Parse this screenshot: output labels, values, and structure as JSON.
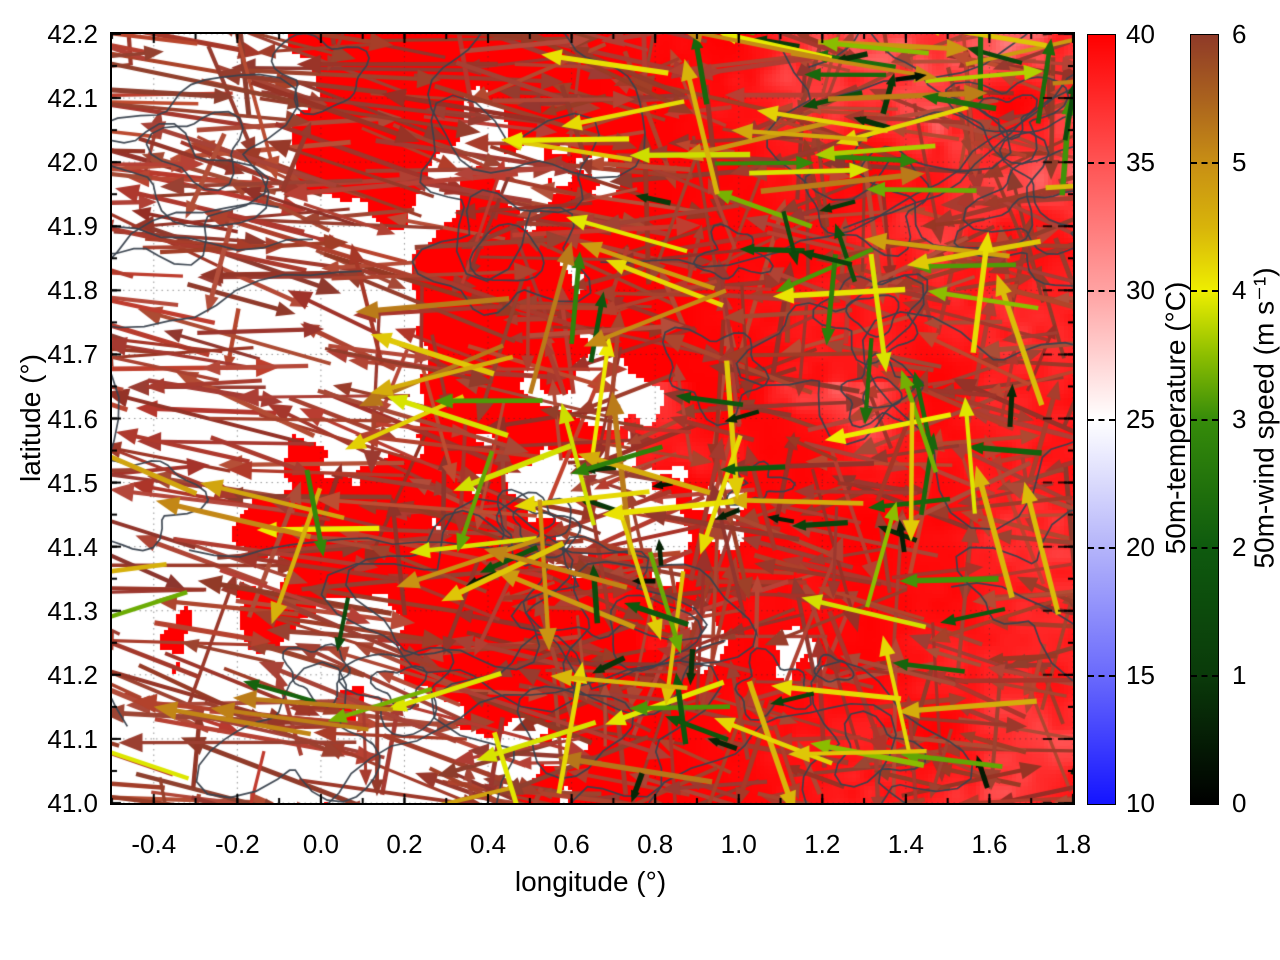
{
  "figure": {
    "background": "#ffffff"
  },
  "chart_data": {
    "type": "heatmap",
    "subtype": "vector-field-map",
    "title": "",
    "xlabel": "longitude (°)",
    "ylabel": "latitude (°)",
    "xlim": [
      -0.5,
      1.8
    ],
    "ylim": [
      41.0,
      42.2
    ],
    "grid": "dotted, at every labelled tick",
    "x_tick_values": [
      -0.4,
      -0.2,
      0.0,
      0.2,
      0.4,
      0.6,
      0.8,
      1.0,
      1.2,
      1.4,
      1.6,
      1.8
    ],
    "x_tick_labels": [
      "-0.4",
      "-0.2",
      "0.0",
      "0.2",
      "0.4",
      "0.6",
      "0.8",
      "1.0",
      "1.2",
      "1.4",
      "1.6",
      "1.8"
    ],
    "y_tick_values": [
      41.0,
      41.1,
      41.2,
      41.3,
      41.4,
      41.5,
      41.6,
      41.7,
      41.8,
      41.9,
      42.0,
      42.1,
      42.2
    ],
    "y_tick_labels": [
      "41.0",
      "41.1",
      "41.2",
      "41.3",
      "41.4",
      "41.5",
      "41.6",
      "41.7",
      "41.8",
      "41.9",
      "42.0",
      "42.1",
      "42.2"
    ],
    "colorbars": [
      {
        "id": "temperature",
        "title": "50m-temperature (°C)",
        "range": [
          10,
          40
        ],
        "tick_values": [
          40,
          35,
          30,
          25,
          20,
          15,
          10
        ],
        "tick_labels": [
          "40",
          "35",
          "30",
          "25",
          "20",
          "15",
          "10"
        ],
        "palette": [
          [
            10,
            "#1414ff"
          ],
          [
            15,
            "#6a6afc"
          ],
          [
            20,
            "#b4b4fa"
          ],
          [
            25,
            "#ffffff"
          ],
          [
            30,
            "#ffa2a2"
          ],
          [
            35,
            "#ff5454"
          ],
          [
            40,
            "#ff0000"
          ]
        ]
      },
      {
        "id": "wind",
        "title": "50m-wind speed (m s⁻¹)",
        "range": [
          0,
          6
        ],
        "tick_values": [
          6,
          5,
          4,
          3,
          2,
          1,
          0
        ],
        "tick_labels": [
          "6",
          "5",
          "4",
          "3",
          "2",
          "1",
          "0"
        ],
        "palette": [
          [
            0,
            "#000000"
          ],
          [
            1,
            "#0a3a0a"
          ],
          [
            2,
            "#0e5a0e"
          ],
          [
            3,
            "#368c0a"
          ],
          [
            3.5,
            "#8cbe00"
          ],
          [
            4,
            "#eeee00"
          ],
          [
            4.5,
            "#d8b40a"
          ],
          [
            5,
            "#c88f14"
          ],
          [
            5.5,
            "#aa621e"
          ],
          [
            6,
            "#8f3a28"
          ]
        ]
      }
    ],
    "field_summary": {
      "description": "50 m temperature shading: saturated red (≥40 °C) over most of the eastern two thirds, white (≈25 °C) patchwork in the west, pale pink mottling (≈30–38 °C) in the north-east corner and along the eastern edge. Overlaid dark contour lines and a very dense field of wind vectors coloured by 50 m wind speed. Vectors are dominated by dark brown-red arrows (≈6 m s⁻¹) blowing towards the west/south-west, criss-crossing in the western half; slower yellow (≈4), orange (≈5), green (≈3) and dark-green (≈1–2 m s⁻¹) arrows concentrate in the eastern half and the north-east corner, many pointing west or north.",
      "contour_color": "#39424e",
      "background_temperature_c": {
        "east": 40,
        "west_patches": 25,
        "northeast_mottle": [
          30,
          38
        ]
      },
      "vectors": {
        "dominant_speed_ms": 6,
        "dominant_color": "#a23a30",
        "dominant_direction": "westward",
        "secondary_speeds_ms": [
          1,
          5
        ],
        "secondary_region": "eastern half and north-east corner"
      }
    },
    "render_hints": {
      "seed": 77041,
      "brown_vector_count": 880,
      "colored_vector_count": 170,
      "contour_blob_count": 36,
      "contour_meander_count": 10
    }
  }
}
